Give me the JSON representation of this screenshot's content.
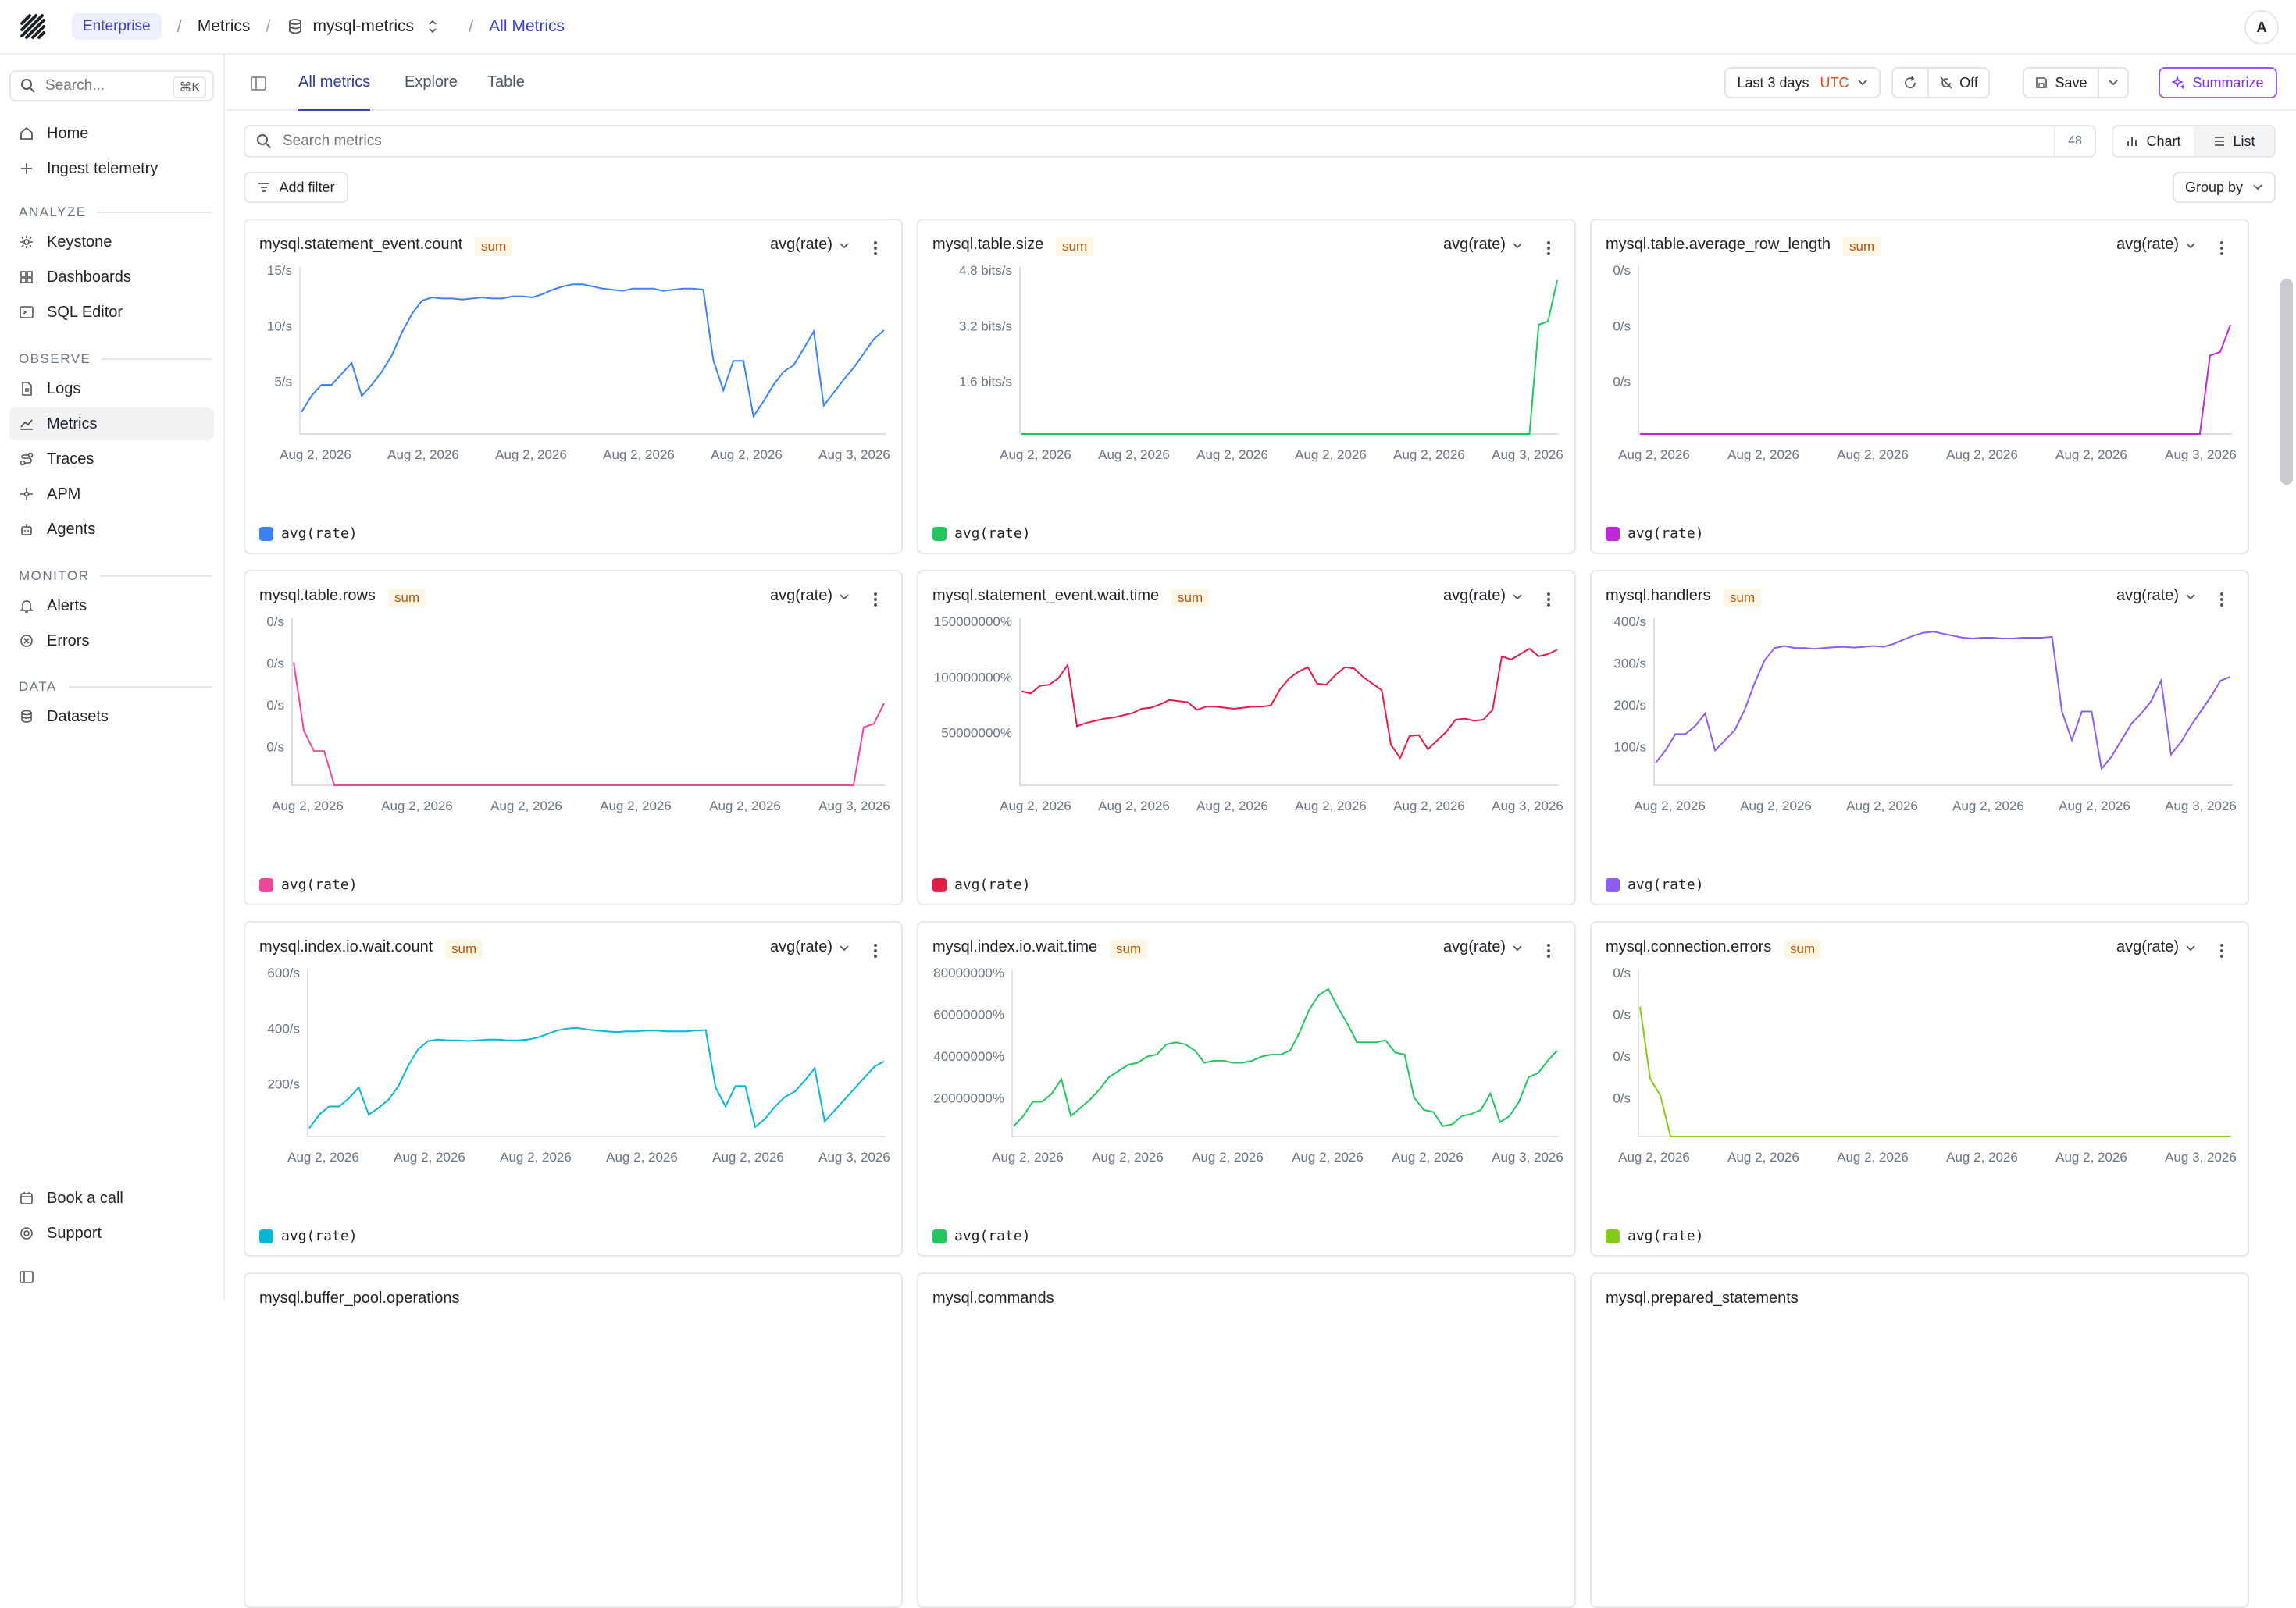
{
  "topbar": {
    "org": "Enterprise",
    "crumbs": [
      "Metrics",
      "mysql-metrics",
      "All Metrics"
    ],
    "avatar": "A"
  },
  "sidebar": {
    "search_placeholder": "Search...",
    "search_kbd": "⌘K",
    "top_items": [
      "Home",
      "Ingest telemetry"
    ],
    "sections": [
      {
        "label": "ANALYZE",
        "items": [
          "Keystone",
          "Dashboards",
          "SQL Editor"
        ]
      },
      {
        "label": "OBSERVE",
        "items": [
          "Logs",
          "Metrics",
          "Traces",
          "APM",
          "Agents"
        ]
      },
      {
        "label": "MONITOR",
        "items": [
          "Alerts",
          "Errors"
        ]
      },
      {
        "label": "DATA",
        "items": [
          "Datasets"
        ]
      }
    ],
    "bottom_items": [
      "Book a call",
      "Support"
    ],
    "selected": "Metrics"
  },
  "tabs": [
    "All metrics",
    "Explore",
    "Table"
  ],
  "toolbar": {
    "range": "Last 3 days",
    "tz": "UTC",
    "refresh": "Off",
    "save": "Save",
    "summarize": "Summarize"
  },
  "search": {
    "placeholder": "Search metrics",
    "count": "48"
  },
  "view_toggle": {
    "chart": "Chart",
    "list": "List"
  },
  "add_filter": "Add filter",
  "group_by": "Group by",
  "cards": [
    {
      "name": "mysql.statement_event.count",
      "badge": "sum",
      "agg": "avg(rate)",
      "legend": "avg(rate)",
      "color": "#3b82f6",
      "yticks": [
        "15/s",
        "10/s",
        "5/s"
      ],
      "ymax": 15,
      "xticks": [
        "Aug 2, 2026",
        "Aug 2, 2026",
        "Aug 2, 2026",
        "Aug 2, 2026",
        "Aug 2, 2026",
        "Aug 3, 2026"
      ],
      "values": [
        2,
        3.5,
        4.5,
        4.5,
        5.5,
        6.5,
        3.5,
        4.5,
        5.7,
        7.2,
        9.3,
        11,
        12.2,
        12.5,
        12.4,
        12.4,
        12.3,
        12.4,
        12.5,
        12.4,
        12.4,
        12.6,
        12.6,
        12.5,
        12.8,
        13.2,
        13.5,
        13.7,
        13.7,
        13.5,
        13.3,
        13.2,
        13.1,
        13.3,
        13.3,
        13.3,
        13.1,
        13.2,
        13.3,
        13.3,
        13.2,
        6.8,
        4,
        6.7,
        6.7,
        1.6,
        3,
        4.5,
        5.7,
        6.3,
        7.8,
        9.4,
        2.6,
        3.8,
        5,
        6.1,
        7.4,
        8.7,
        9.5
      ]
    },
    {
      "name": "mysql.table.size",
      "badge": "sum",
      "agg": "avg(rate)",
      "legend": "avg(rate)",
      "color": "#22c55e",
      "yticks": [
        "4.8 bits/s",
        "3.2 bits/s",
        "1.6 bits/s"
      ],
      "ymax": 4.8,
      "xticks": [
        "Aug 2, 2026",
        "Aug 2, 2026",
        "Aug 2, 2026",
        "Aug 2, 2026",
        "Aug 2, 2026",
        "Aug 3, 2026"
      ],
      "values": [
        0,
        0,
        0,
        0,
        0,
        0,
        0,
        0,
        0,
        0,
        0,
        0,
        0,
        0,
        0,
        0,
        0,
        0,
        0,
        0,
        0,
        0,
        0,
        0,
        0,
        0,
        0,
        0,
        0,
        0,
        0,
        0,
        0,
        0,
        0,
        0,
        0,
        0,
        0,
        0,
        0,
        0,
        0,
        0,
        0,
        0,
        0,
        0,
        0,
        0,
        0,
        0,
        0,
        0,
        0,
        0,
        3.2,
        3.3,
        4.5
      ]
    },
    {
      "name": "mysql.table.average_row_length",
      "badge": "sum",
      "agg": "avg(rate)",
      "legend": "avg(rate)",
      "color": "#c026d3",
      "yticks": [
        "0/s",
        "0/s",
        "0/s"
      ],
      "ymax": 4.8,
      "xticks": [
        "Aug 2, 2026",
        "Aug 2, 2026",
        "Aug 2, 2026",
        "Aug 2, 2026",
        "Aug 2, 2026",
        "Aug 3, 2026"
      ],
      "values": [
        0,
        0,
        0,
        0,
        0,
        0,
        0,
        0,
        0,
        0,
        0,
        0,
        0,
        0,
        0,
        0,
        0,
        0,
        0,
        0,
        0,
        0,
        0,
        0,
        0,
        0,
        0,
        0,
        0,
        0,
        0,
        0,
        0,
        0,
        0,
        0,
        0,
        0,
        0,
        0,
        0,
        0,
        0,
        0,
        0,
        0,
        0,
        0,
        0,
        0,
        0,
        0,
        0,
        0,
        0,
        0,
        2.3,
        2.4,
        3.2
      ]
    },
    {
      "name": "mysql.table.rows",
      "badge": "sum",
      "agg": "avg(rate)",
      "legend": "avg(rate)",
      "color": "#ec4899",
      "yticks": [
        "0/s",
        "0/s",
        "0/s",
        "0/s"
      ],
      "ymax": 4.8,
      "xticks": [
        "Aug 2, 2026",
        "Aug 2, 2026",
        "Aug 2, 2026",
        "Aug 2, 2026",
        "Aug 2, 2026",
        "Aug 3, 2026"
      ],
      "values": [
        3.6,
        1.6,
        1,
        1,
        0,
        0,
        0,
        0,
        0,
        0,
        0,
        0,
        0,
        0,
        0,
        0,
        0,
        0,
        0,
        0,
        0,
        0,
        0,
        0,
        0,
        0,
        0,
        0,
        0,
        0,
        0,
        0,
        0,
        0,
        0,
        0,
        0,
        0,
        0,
        0,
        0,
        0,
        0,
        0,
        0,
        0,
        0,
        0,
        0,
        0,
        0,
        0,
        0,
        0,
        0,
        0,
        1.7,
        1.8,
        2.4
      ]
    },
    {
      "name": "mysql.statement_event.wait.time",
      "badge": "sum",
      "agg": "avg(rate)",
      "legend": "avg(rate)",
      "color": "#e11d48",
      "yticks": [
        "150000000%",
        "100000000%",
        "50000000%"
      ],
      "ymax": 150000000,
      "xticks": [
        "Aug 2, 2026",
        "Aug 2, 2026",
        "Aug 2, 2026",
        "Aug 2, 2026",
        "Aug 2, 2026",
        "Aug 3, 2026"
      ],
      "values": [
        86000000,
        84000000,
        91000000,
        92000000,
        98000000,
        110000000,
        54000000,
        57000000,
        59000000,
        61000000,
        62000000,
        64000000,
        66000000,
        70000000,
        71000000,
        74000000,
        78000000,
        77000000,
        76000000,
        69000000,
        72000000,
        72000000,
        71000000,
        70000000,
        71000000,
        72000000,
        72000000,
        73000000,
        88000000,
        98000000,
        104000000,
        108000000,
        93000000,
        92000000,
        101000000,
        108000000,
        107000000,
        99000000,
        93000000,
        87000000,
        37000000,
        25000000,
        45000000,
        46000000,
        33000000,
        41000000,
        49000000,
        60000000,
        61000000,
        59000000,
        60000000,
        69000000,
        118000000,
        115000000,
        120000000,
        125000000,
        118000000,
        120000000,
        124000000
      ]
    },
    {
      "name": "mysql.handlers",
      "badge": "sum",
      "agg": "avg(rate)",
      "legend": "avg(rate)",
      "color": "#8b5cf6",
      "yticks": [
        "400/s",
        "300/s",
        "200/s",
        "100/s"
      ],
      "ymax": 400,
      "xticks": [
        "Aug 2, 2026",
        "Aug 2, 2026",
        "Aug 2, 2026",
        "Aug 2, 2026",
        "Aug 2, 2026",
        "Aug 3, 2026"
      ],
      "values": [
        55,
        85,
        125,
        125,
        145,
        175,
        85,
        110,
        135,
        185,
        250,
        305,
        335,
        340,
        335,
        335,
        333,
        335,
        337,
        338,
        336,
        338,
        340,
        338,
        345,
        355,
        365,
        372,
        375,
        370,
        365,
        360,
        358,
        360,
        360,
        358,
        358,
        360,
        360,
        360,
        362,
        180,
        110,
        180,
        180,
        40,
        70,
        110,
        150,
        175,
        205,
        255,
        75,
        105,
        145,
        180,
        215,
        255,
        265
      ]
    },
    {
      "name": "mysql.index.io.wait.count",
      "badge": "sum",
      "agg": "avg(rate)",
      "legend": "avg(rate)",
      "color": "#06b6d4",
      "yticks": [
        "600/s",
        "400/s",
        "200/s"
      ],
      "ymax": 600,
      "xticks": [
        "Aug 2, 2026",
        "Aug 2, 2026",
        "Aug 2, 2026",
        "Aug 2, 2026",
        "Aug 2, 2026",
        "Aug 3, 2026"
      ],
      "values": [
        30,
        80,
        110,
        110,
        140,
        180,
        80,
        105,
        135,
        185,
        260,
        320,
        350,
        355,
        352,
        352,
        350,
        352,
        355,
        355,
        352,
        352,
        355,
        362,
        375,
        388,
        395,
        398,
        392,
        388,
        385,
        382,
        385,
        385,
        388,
        388,
        385,
        385,
        385,
        388,
        390,
        180,
        110,
        185,
        185,
        35,
        65,
        110,
        145,
        165,
        205,
        250,
        55,
        95,
        135,
        175,
        215,
        255,
        275
      ]
    },
    {
      "name": "mysql.index.io.wait.time",
      "badge": "sum",
      "agg": "avg(rate)",
      "legend": "avg(rate)",
      "color": "#22c55e",
      "yticks": [
        "80000000%",
        "60000000%",
        "40000000%",
        "20000000%"
      ],
      "ymax": 80000000,
      "xticks": [
        "Aug 2, 2026",
        "Aug 2, 2026",
        "Aug 2, 2026",
        "Aug 2, 2026",
        "Aug 2, 2026",
        "Aug 3, 2026"
      ],
      "values": [
        5000000,
        10000000,
        17000000,
        17000000,
        21000000,
        28000000,
        10000000,
        14000000,
        18000000,
        23000000,
        29000000,
        32000000,
        35000000,
        36000000,
        39000000,
        40000000,
        45000000,
        46000000,
        45000000,
        42000000,
        36000000,
        37000000,
        37000000,
        36000000,
        36000000,
        37000000,
        39000000,
        40000000,
        40000000,
        42000000,
        51000000,
        62000000,
        69000000,
        72000000,
        63000000,
        55000000,
        46000000,
        46000000,
        46000000,
        47000000,
        41000000,
        40000000,
        19000000,
        13000000,
        12000000,
        5000000,
        6000000,
        10000000,
        11000000,
        13000000,
        21000000,
        7000000,
        10000000,
        17000000,
        29000000,
        31000000,
        37000000,
        42000000
      ]
    },
    {
      "name": "mysql.connection.errors",
      "badge": "sum",
      "agg": "avg(rate)",
      "legend": "avg(rate)",
      "color": "#84cc16",
      "yticks": [
        "0/s",
        "0/s",
        "0/s",
        "0/s"
      ],
      "ymax": 4.8,
      "xticks": [
        "Aug 2, 2026",
        "Aug 2, 2026",
        "Aug 2, 2026",
        "Aug 2, 2026",
        "Aug 2, 2026",
        "Aug 3, 2026"
      ],
      "values": [
        3.8,
        1.7,
        1.2,
        0,
        0,
        0,
        0,
        0,
        0,
        0,
        0,
        0,
        0,
        0,
        0,
        0,
        0,
        0,
        0,
        0,
        0,
        0,
        0,
        0,
        0,
        0,
        0,
        0,
        0,
        0,
        0,
        0,
        0,
        0,
        0,
        0,
        0,
        0,
        0,
        0,
        0,
        0,
        0,
        0,
        0,
        0,
        0,
        0,
        0,
        0,
        0,
        0,
        0,
        0,
        0,
        0,
        0,
        0,
        0
      ]
    }
  ],
  "partial_cards": [
    "mysql.buffer_pool.operations",
    "mysql.commands",
    "mysql.prepared_statements"
  ]
}
